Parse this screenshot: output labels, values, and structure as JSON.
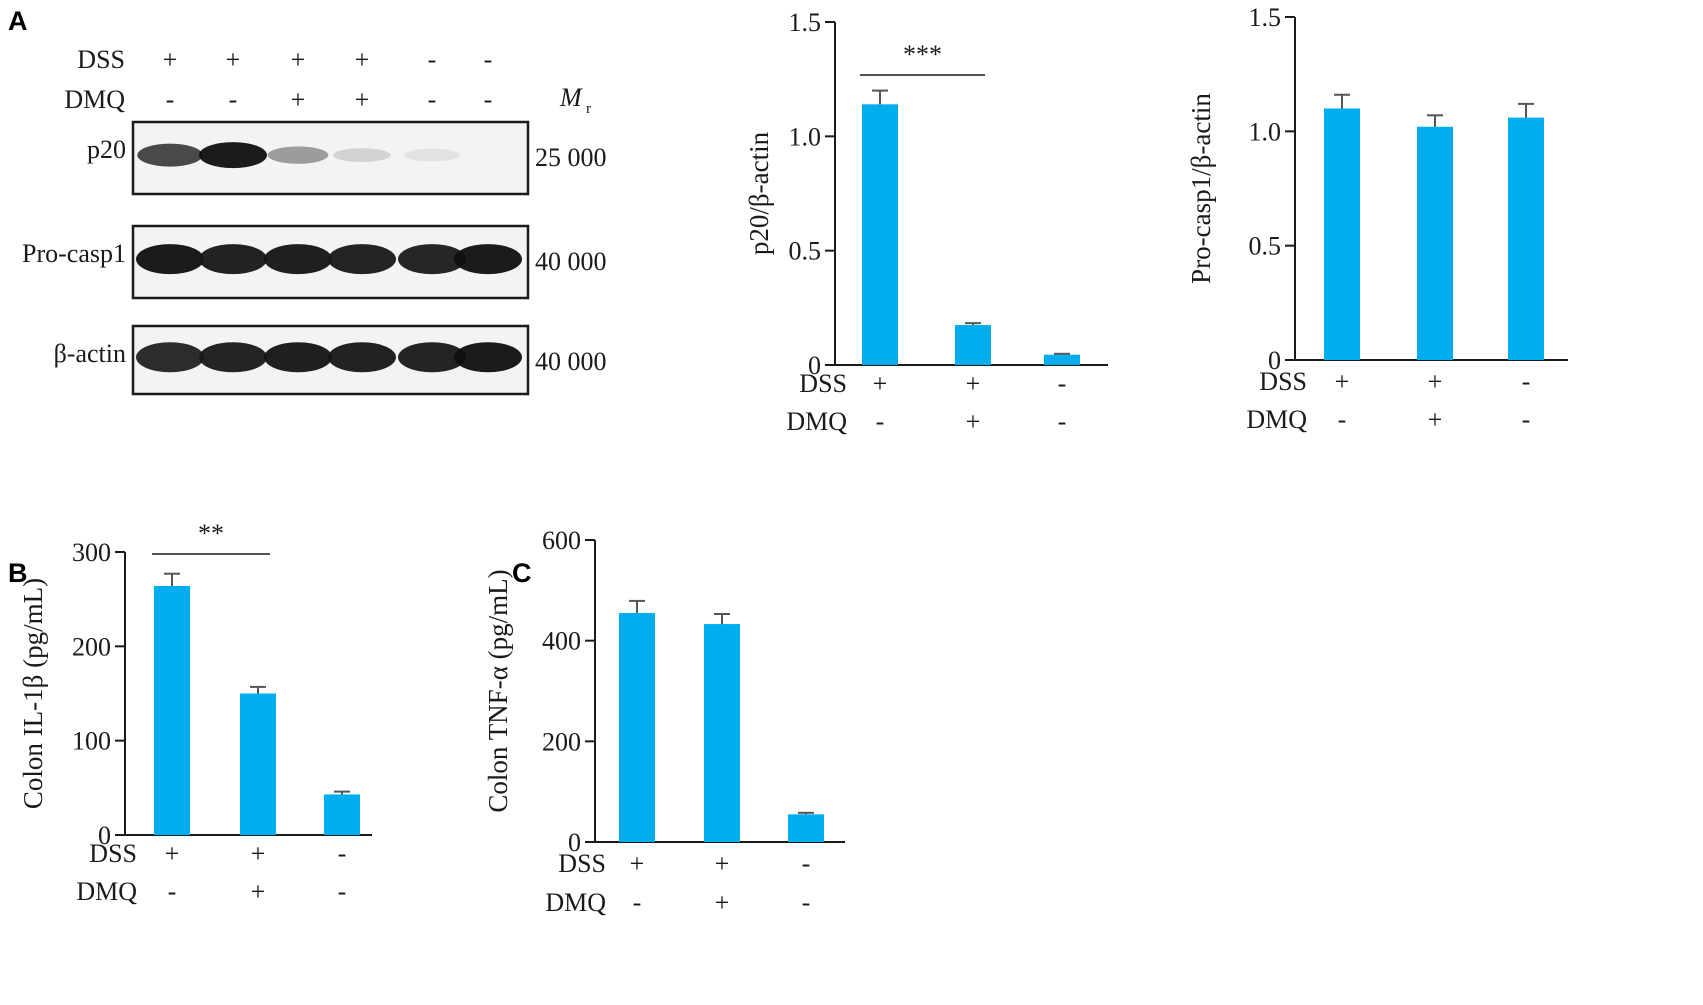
{
  "panels": {
    "A": "A",
    "B": "B",
    "C": "C"
  },
  "blot": {
    "conditions": [
      {
        "label": "DSS",
        "values": [
          "+",
          "+",
          "+",
          "+",
          "-",
          "-"
        ]
      },
      {
        "label": "DMQ",
        "values": [
          "-",
          "-",
          "+",
          "+",
          "-",
          "-"
        ]
      }
    ],
    "mr_label": "M",
    "mr_sub": "r",
    "rows": [
      {
        "label": "p20",
        "mr": "25 000",
        "intensity": [
          0.78,
          1.0,
          0.38,
          0.12,
          0.05,
          0.0
        ]
      },
      {
        "label": "Pro-casp1",
        "mr": "40 000",
        "intensity": [
          1.0,
          0.97,
          0.98,
          0.96,
          0.95,
          1.0
        ]
      },
      {
        "label": "β-actin",
        "mr": "40 000",
        "intensity": [
          0.92,
          0.96,
          0.98,
          0.97,
          0.96,
          1.0
        ]
      }
    ]
  },
  "colors": {
    "bar": "#00aeef",
    "axis": "#1a1a1a",
    "errbar": "#555555"
  },
  "chart_data": [
    {
      "id": "p20",
      "type": "bar",
      "ylabel": "p20/β-actin",
      "ylim": [
        0,
        1.5
      ],
      "yticks": [
        0,
        0.5,
        1.0,
        1.5
      ],
      "ytick_labels": [
        "0",
        "0.5",
        "1.0",
        "1.5"
      ],
      "values": [
        1.14,
        0.175,
        0.045
      ],
      "errors": [
        0.06,
        0.008,
        0.004
      ],
      "conditions": [
        {
          "label": "DSS",
          "values": [
            "+",
            "+",
            "-"
          ]
        },
        {
          "label": "DMQ",
          "values": [
            "-",
            "+",
            "-"
          ]
        }
      ],
      "significance": {
        "from": 0,
        "to": 1,
        "label": "***"
      }
    },
    {
      "id": "procasp1",
      "type": "bar",
      "ylabel": "Pro-casp1/β-actin",
      "ylim": [
        0,
        1.5
      ],
      "yticks": [
        0,
        0.5,
        1.0,
        1.5
      ],
      "ytick_labels": [
        "0",
        "0.5",
        "1.0",
        "1.5"
      ],
      "values": [
        1.1,
        1.02,
        1.06
      ],
      "errors": [
        0.06,
        0.05,
        0.06
      ],
      "conditions": [
        {
          "label": "DSS",
          "values": [
            "+",
            "+",
            "-"
          ]
        },
        {
          "label": "DMQ",
          "values": [
            "-",
            "+",
            "-"
          ]
        }
      ]
    },
    {
      "id": "il1b",
      "type": "bar",
      "ylabel": "Colon IL-1β (pg/mL)",
      "ylim": [
        0,
        300
      ],
      "yticks": [
        0,
        100,
        200,
        300
      ],
      "ytick_labels": [
        "0",
        "100",
        "200",
        "300"
      ],
      "values": [
        264,
        150,
        43
      ],
      "errors": [
        13,
        7,
        3
      ],
      "conditions": [
        {
          "label": "DSS",
          "values": [
            "+",
            "+",
            "-"
          ]
        },
        {
          "label": "DMQ",
          "values": [
            "-",
            "+",
            "-"
          ]
        }
      ],
      "significance": {
        "from": 0,
        "to": 1,
        "label": "**"
      }
    },
    {
      "id": "tnfa",
      "type": "bar",
      "ylabel": "Colon TNF-α (pg/mL)",
      "ylim": [
        0,
        600
      ],
      "yticks": [
        0,
        200,
        400,
        600
      ],
      "ytick_labels": [
        "0",
        "200",
        "400",
        "600"
      ],
      "values": [
        455,
        433,
        55
      ],
      "errors": [
        24,
        20,
        3
      ],
      "conditions": [
        {
          "label": "DSS",
          "values": [
            "+",
            "+",
            "-"
          ]
        },
        {
          "label": "DMQ",
          "values": [
            "-",
            "+",
            "-"
          ]
        }
      ]
    }
  ]
}
